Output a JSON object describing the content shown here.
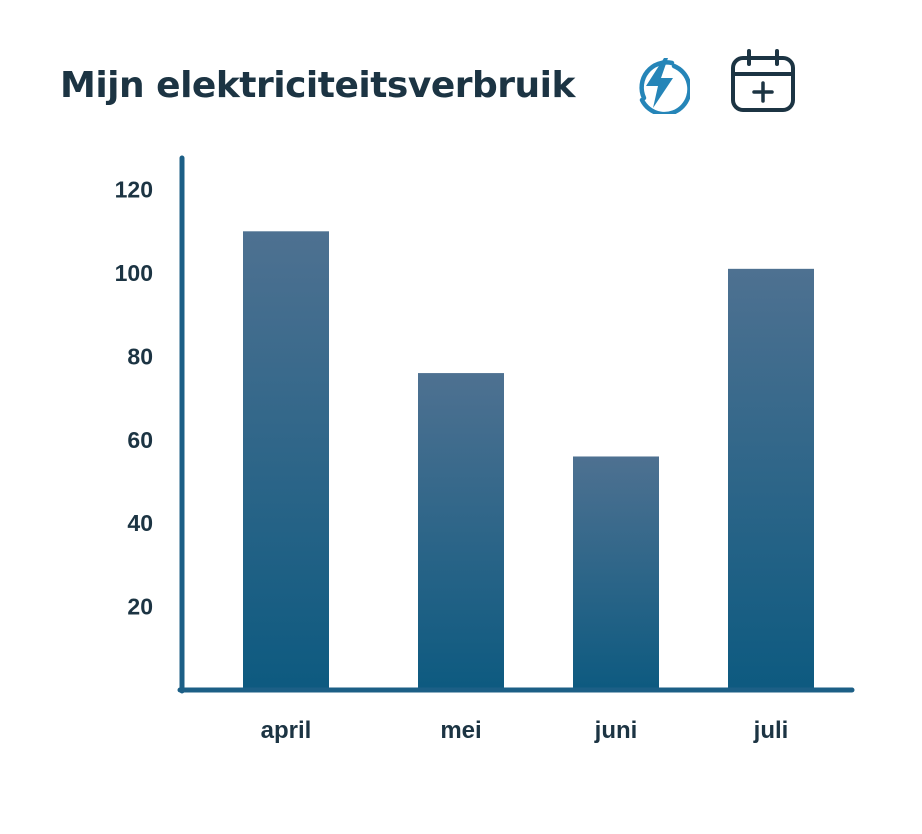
{
  "header": {
    "title": "Mijn elektriciteitsverbruik",
    "icons": [
      "lightning-bolt-icon",
      "calendar-add-icon"
    ]
  },
  "colors": {
    "title": "#1c3443",
    "axis": "#1c5f86",
    "bar_top": "#4e7191",
    "bar_bottom": "#0d5a80",
    "bolt_icon": "#2585b8"
  },
  "chart_data": {
    "type": "bar",
    "categories": [
      "april",
      "mei",
      "juni",
      "juli"
    ],
    "values": [
      110,
      76,
      56,
      101
    ],
    "y_ticks": [
      20,
      40,
      60,
      80,
      100,
      120
    ],
    "ylim": [
      0,
      125
    ],
    "title": "Mijn elektriciteitsverbruik",
    "xlabel": "",
    "ylabel": "",
    "grid": false,
    "legend": "none"
  }
}
